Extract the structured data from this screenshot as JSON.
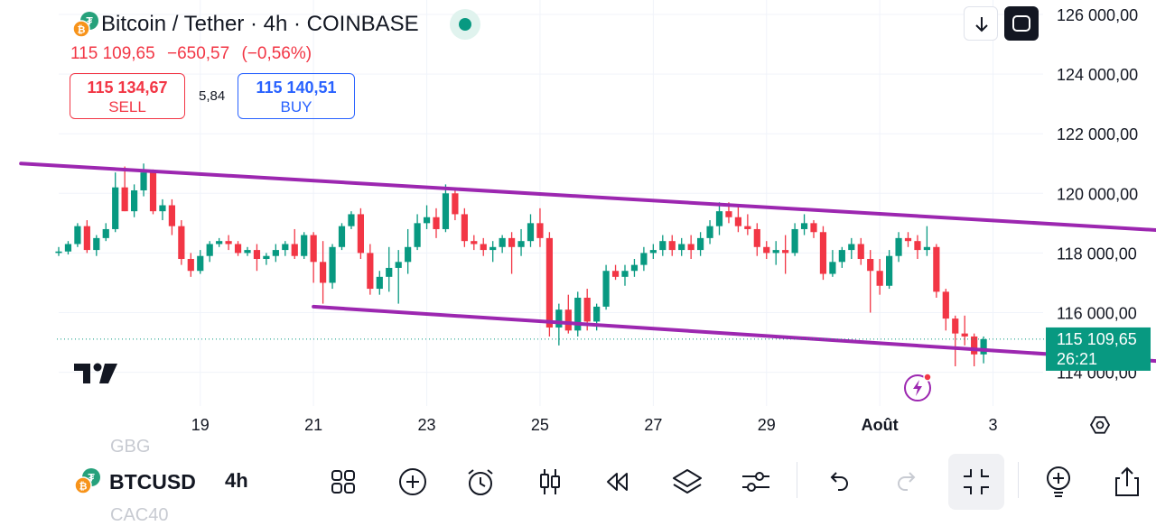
{
  "header": {
    "title": "Bitcoin / Tether · 4h · COINBASE",
    "last_price": "115 109,65",
    "change": "−650,57",
    "change_pct": "(−0,56%)"
  },
  "trade": {
    "sell_price": "115 134,67",
    "sell_label": "SELL",
    "spread": "5,84",
    "buy_price": "115 140,51",
    "buy_label": "BUY"
  },
  "price_tag": {
    "price": "115 109,65",
    "countdown": "26:21"
  },
  "toolbar": {
    "symbol": "BTCUSD",
    "interval": "4h",
    "ghost_above": "GBG",
    "ghost_below": "CAC40"
  },
  "colors": {
    "up": "#089981",
    "down": "#f23645",
    "channel": "#9c27b0",
    "accent": "#2962ff"
  },
  "icons": [
    "download-icon",
    "fullscreen-icon",
    "layout-icon",
    "add-icon",
    "alarm-icon",
    "candles-icon",
    "replay-icon",
    "layers-icon",
    "settings-icon",
    "undo-icon",
    "redo-icon",
    "collapse-icon",
    "add-indicator-icon",
    "share-icon"
  ],
  "chart_data": {
    "type": "candlestick",
    "symbol": "Bitcoin / Tether",
    "interval": "4h",
    "exchange": "COINBASE",
    "y_ticks": [
      "114 000,00",
      "116 000,00",
      "118 000,00",
      "120 000,00",
      "122 000,00",
      "124 000,00",
      "126 000,00"
    ],
    "y_values": [
      114000,
      116000,
      118000,
      120000,
      122000,
      124000,
      126000
    ],
    "ylim": [
      113900,
      126400
    ],
    "x_ticks": [
      "19",
      "21",
      "23",
      "25",
      "27",
      "29",
      "Août",
      "3"
    ],
    "x_tick_index": [
      15,
      27,
      39,
      51,
      63,
      75,
      87,
      99
    ],
    "last_price": 115109.65,
    "ohlc": [
      [
        118000,
        118200,
        117900,
        118050
      ],
      [
        118050,
        118400,
        117950,
        118300
      ],
      [
        118300,
        119000,
        118200,
        118900
      ],
      [
        118900,
        119100,
        118000,
        118100
      ],
      [
        118100,
        118600,
        117900,
        118500
      ],
      [
        118500,
        119000,
        118400,
        118800
      ],
      [
        118800,
        120700,
        118700,
        120200
      ],
      [
        120200,
        120900,
        119400,
        119400
      ],
      [
        119400,
        120300,
        119200,
        120100
      ],
      [
        120100,
        121000,
        119900,
        120700
      ],
      [
        120700,
        120800,
        119300,
        119400
      ],
      [
        119400,
        119800,
        119100,
        119600
      ],
      [
        119600,
        119800,
        118600,
        118900
      ],
      [
        118900,
        119100,
        117600,
        117800
      ],
      [
        117800,
        118000,
        117200,
        117400
      ],
      [
        117400,
        118100,
        117300,
        117900
      ],
      [
        117900,
        118400,
        117700,
        118300
      ],
      [
        118300,
        118500,
        118200,
        118400
      ],
      [
        118400,
        118600,
        118100,
        118300
      ],
      [
        118300,
        118400,
        117900,
        118000
      ],
      [
        118000,
        118200,
        117900,
        118100
      ],
      [
        118100,
        118300,
        117400,
        117800
      ],
      [
        117800,
        118000,
        117600,
        117900
      ],
      [
        117900,
        118300,
        117700,
        118100
      ],
      [
        118100,
        118400,
        117900,
        118300
      ],
      [
        118300,
        118800,
        117800,
        117900
      ],
      [
        117900,
        118700,
        117800,
        118600
      ],
      [
        118600,
        118700,
        117000,
        117700
      ],
      [
        117700,
        118400,
        116300,
        117000
      ],
      [
        117000,
        118300,
        116800,
        118200
      ],
      [
        118200,
        119000,
        118100,
        118900
      ],
      [
        118900,
        119400,
        118800,
        119300
      ],
      [
        119300,
        119500,
        117800,
        118000
      ],
      [
        118000,
        118300,
        116600,
        116800
      ],
      [
        116800,
        117400,
        116600,
        117200
      ],
      [
        117200,
        118200,
        116700,
        117500
      ],
      [
        117500,
        118100,
        116300,
        117700
      ],
      [
        117700,
        118800,
        117300,
        118200
      ],
      [
        118200,
        119300,
        118100,
        119000
      ],
      [
        119000,
        119600,
        118800,
        119200
      ],
      [
        119200,
        119500,
        118500,
        118800
      ],
      [
        118800,
        120300,
        118700,
        120000
      ],
      [
        120000,
        120200,
        119100,
        119300
      ],
      [
        119300,
        119500,
        118200,
        118400
      ],
      [
        118400,
        118600,
        118100,
        118300
      ],
      [
        118300,
        118500,
        117900,
        118100
      ],
      [
        118100,
        118400,
        117700,
        118200
      ],
      [
        118200,
        118600,
        118000,
        118500
      ],
      [
        118500,
        118700,
        117300,
        118200
      ],
      [
        118200,
        118800,
        117900,
        118400
      ],
      [
        118400,
        119300,
        118200,
        119000
      ],
      [
        119000,
        119500,
        118200,
        118500
      ],
      [
        118500,
        118700,
        115200,
        115500
      ],
      [
        115500,
        116300,
        114900,
        116100
      ],
      [
        116100,
        116600,
        115300,
        115400
      ],
      [
        115400,
        116700,
        115200,
        116500
      ],
      [
        116500,
        116800,
        115400,
        115700
      ],
      [
        115700,
        116300,
        115400,
        116200
      ],
      [
        116200,
        117600,
        116100,
        117400
      ],
      [
        117400,
        117600,
        117100,
        117200
      ],
      [
        117200,
        117600,
        116900,
        117400
      ],
      [
        117400,
        117800,
        117200,
        117600
      ],
      [
        117600,
        118200,
        117400,
        118000
      ],
      [
        118000,
        118300,
        117800,
        118100
      ],
      [
        118100,
        118600,
        117900,
        118400
      ],
      [
        118400,
        118600,
        117900,
        118100
      ],
      [
        118100,
        118500,
        117900,
        118300
      ],
      [
        118300,
        118600,
        117800,
        118100
      ],
      [
        118100,
        118700,
        117900,
        118500
      ],
      [
        118500,
        119100,
        118300,
        118900
      ],
      [
        118900,
        119700,
        118600,
        119400
      ],
      [
        119400,
        119700,
        119000,
        119200
      ],
      [
        119200,
        119600,
        118700,
        118900
      ],
      [
        118900,
        119300,
        118600,
        118800
      ],
      [
        118800,
        119000,
        117900,
        118200
      ],
      [
        118200,
        118400,
        117800,
        118000
      ],
      [
        118000,
        118400,
        117600,
        118100
      ],
      [
        118100,
        118600,
        117300,
        118000
      ],
      [
        118000,
        119000,
        117900,
        118800
      ],
      [
        118800,
        119300,
        118600,
        119000
      ],
      [
        119000,
        119100,
        118500,
        118700
      ],
      [
        118700,
        118900,
        117100,
        117300
      ],
      [
        117300,
        118100,
        117200,
        117700
      ],
      [
        117700,
        118200,
        117500,
        118100
      ],
      [
        118100,
        118500,
        117800,
        118300
      ],
      [
        118300,
        118500,
        117600,
        117800
      ],
      [
        117800,
        118100,
        116000,
        117400
      ],
      [
        117400,
        117800,
        116600,
        116900
      ],
      [
        116900,
        118100,
        116800,
        117900
      ],
      [
        117900,
        118700,
        117700,
        118500
      ],
      [
        118500,
        118700,
        118200,
        118400
      ],
      [
        118400,
        118600,
        117800,
        118100
      ],
      [
        118100,
        118900,
        117900,
        118200
      ],
      [
        118200,
        118300,
        116500,
        116700
      ],
      [
        116700,
        116800,
        115400,
        115800
      ],
      [
        115800,
        115900,
        114200,
        115300
      ],
      [
        115300,
        115900,
        114900,
        115200
      ],
      [
        115200,
        115300,
        114200,
        114600
      ],
      [
        114600,
        115200,
        114300,
        115110
      ]
    ],
    "channel_upper": {
      "from": [
        -4,
        121000
      ],
      "to": [
        120,
        118700
      ]
    },
    "channel_lower": {
      "from": [
        27,
        116200
      ],
      "to": [
        120,
        114300
      ]
    }
  }
}
